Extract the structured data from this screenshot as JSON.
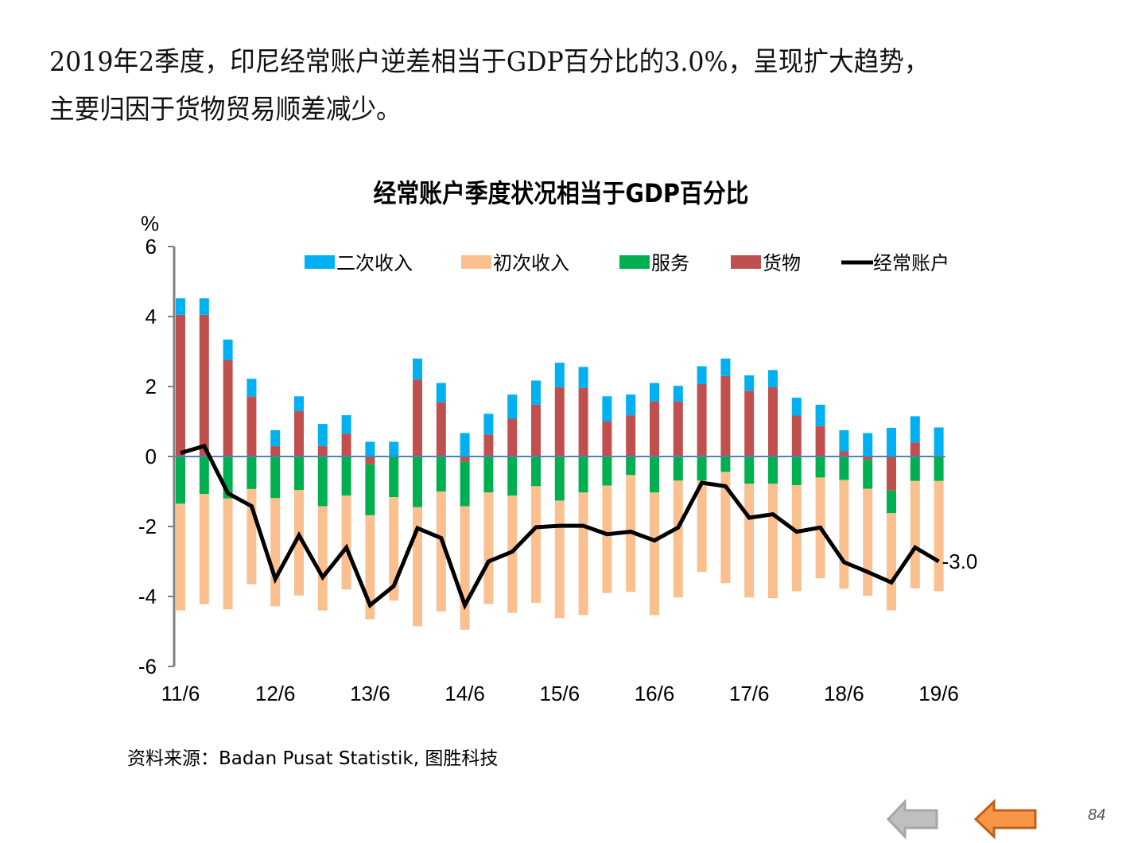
{
  "headline": {
    "line1": "2019年2季度，印尼经常账户逆差相当于GDP百分比的3.0%，呈现扩大趋势，",
    "line2": "主要归因于货物贸易顺差减少。"
  },
  "source": "资料来源：Badan Pusat Statistik, 图胜科技",
  "page_number": "84",
  "nav": {
    "prev_icon": "left-arrow-gray",
    "back_icon": "left-arrow-orange"
  },
  "colors": {
    "secondary_income": "#00B0F0",
    "primary_income": "#FAC090",
    "services": "#00B050",
    "goods": "#C0504D",
    "current_account": "#000000",
    "zero_line": "#4F81BD",
    "axis": "#808080"
  },
  "chart_data": {
    "type": "bar",
    "subtype": "stacked bar with line overlay",
    "title": "经常账户季度状况相当于GDP百分比",
    "ylabel": "%",
    "xlabel": "",
    "ylim": [
      -6,
      6
    ],
    "yticks": [
      6,
      4,
      2,
      0,
      -2,
      -4,
      -6
    ],
    "grid": false,
    "legend_position": "top",
    "x_tick_labels": [
      "11/6",
      "12/6",
      "13/6",
      "14/6",
      "15/6",
      "16/6",
      "17/6",
      "18/6",
      "19/6"
    ],
    "x_tick_every": 4,
    "categories": [
      "11Q2",
      "11Q3",
      "11Q4",
      "12Q1",
      "12Q2",
      "12Q3",
      "12Q4",
      "13Q1",
      "13Q2",
      "13Q3",
      "13Q4",
      "14Q1",
      "14Q2",
      "14Q3",
      "14Q4",
      "15Q1",
      "15Q2",
      "15Q3",
      "15Q4",
      "16Q1",
      "16Q2",
      "16Q3",
      "16Q4",
      "17Q1",
      "17Q2",
      "17Q3",
      "17Q4",
      "18Q1",
      "18Q2",
      "18Q3",
      "18Q4",
      "19Q1",
      "19Q2"
    ],
    "series": [
      {
        "name": "二次收入",
        "kind": "bar",
        "values": [
          0.47,
          0.47,
          0.59,
          0.5,
          0.45,
          0.42,
          0.63,
          0.53,
          0.42,
          0.42,
          0.6,
          0.55,
          0.67,
          0.59,
          0.69,
          0.69,
          0.7,
          0.6,
          0.72,
          0.59,
          0.53,
          0.45,
          0.51,
          0.5,
          0.44,
          0.49,
          0.51,
          0.61,
          0.6,
          0.67,
          0.82,
          0.75,
          0.8
        ]
      },
      {
        "name": "初次收入",
        "kind": "bar",
        "values": [
          -3.05,
          -3.15,
          -3.17,
          -2.72,
          -3.09,
          -3.01,
          -2.98,
          -2.68,
          -2.97,
          -2.96,
          -3.4,
          -3.43,
          -3.53,
          -3.19,
          -3.35,
          -3.33,
          -3.36,
          -3.5,
          -3.07,
          -3.34,
          -3.5,
          -3.34,
          -2.61,
          -3.18,
          -3.25,
          -3.27,
          -3.03,
          -2.88,
          -3.11,
          -3.06,
          -2.78,
          -3.07,
          -3.15
        ]
      },
      {
        "name": "服务",
        "kind": "bar",
        "values": [
          -1.35,
          -1.07,
          -1.2,
          -0.93,
          -1.19,
          -0.96,
          -1.42,
          -1.12,
          -1.46,
          -1.16,
          -1.45,
          -1.0,
          -1.27,
          -1.03,
          -1.12,
          -0.85,
          -1.26,
          -1.03,
          -0.83,
          -0.53,
          -1.03,
          -0.69,
          -0.69,
          -0.44,
          -0.78,
          -0.78,
          -0.82,
          -0.6,
          -0.67,
          -0.82,
          -0.65,
          -0.7,
          -0.7
        ]
      },
      {
        "name": "货物",
        "kind": "bar",
        "values": [
          4.05,
          4.05,
          2.75,
          1.72,
          0.3,
          1.3,
          0.3,
          0.65,
          -0.22,
          0.0,
          2.2,
          1.55,
          -0.15,
          0.63,
          1.08,
          1.48,
          1.98,
          1.96,
          1.0,
          1.18,
          1.57,
          1.57,
          2.07,
          2.3,
          1.88,
          1.98,
          1.17,
          0.87,
          0.15,
          -0.1,
          -0.97,
          0.4,
          0.03
        ]
      },
      {
        "name": "经常账户",
        "kind": "line",
        "values": [
          0.1,
          0.3,
          -1.05,
          -1.42,
          -3.5,
          -2.25,
          -3.45,
          -2.6,
          -4.25,
          -3.7,
          -2.05,
          -2.33,
          -4.25,
          -3.0,
          -2.72,
          -2.02,
          -1.98,
          -1.98,
          -2.22,
          -2.15,
          -2.4,
          -2.03,
          -0.75,
          -0.85,
          -1.75,
          -1.65,
          -2.15,
          -2.03,
          -3.02,
          -3.3,
          -3.6,
          -2.6,
          -3.0
        ]
      }
    ],
    "annotations": [
      {
        "category": "19Q2",
        "series": "经常账户",
        "text": "-3.0"
      }
    ]
  }
}
